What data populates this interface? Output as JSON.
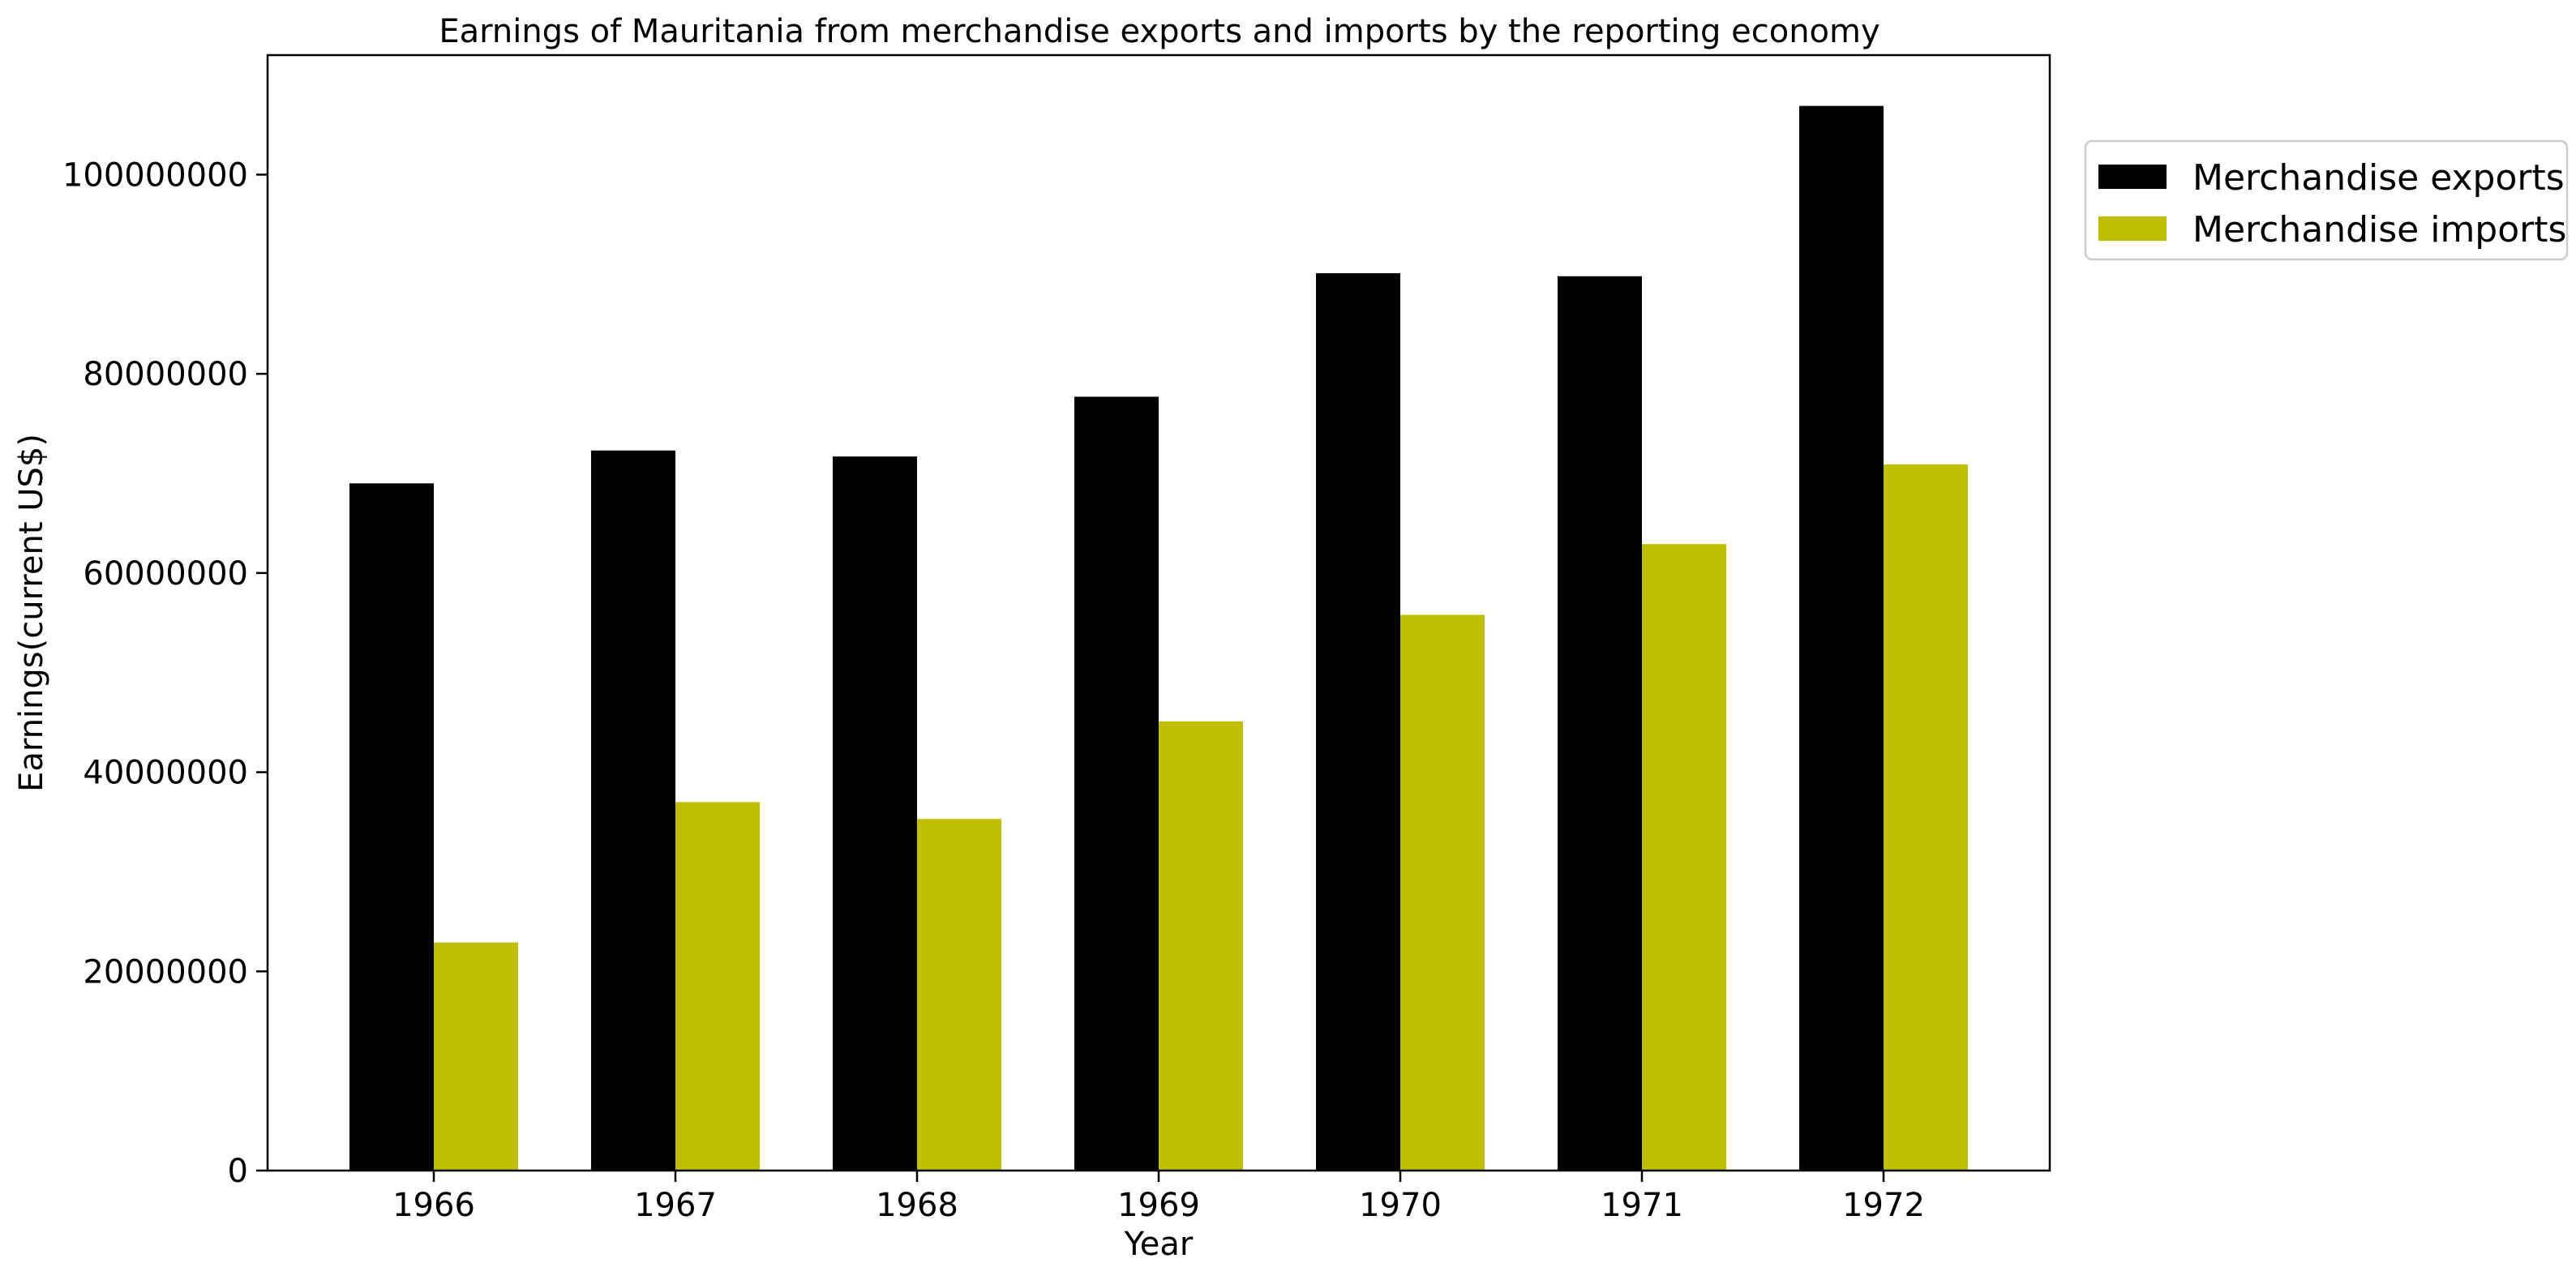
{
  "chart_data": {
    "type": "bar",
    "title": "Earnings of Mauritania from merchandise exports and imports by the reporting economy",
    "xlabel": "Year",
    "ylabel": "Earnings(current US$)",
    "categories": [
      "1966",
      "1967",
      "1968",
      "1969",
      "1970",
      "1971",
      "1972"
    ],
    "series": [
      {
        "name": "Merchandise exports",
        "color": "#000000",
        "values": [
          69000000,
          72300000,
          71700000,
          77700000,
          90100000,
          89800000,
          106900000
        ]
      },
      {
        "name": "Merchandise imports",
        "color": "#bfbf00",
        "values": [
          22900000,
          37000000,
          35300000,
          45100000,
          55800000,
          62900000,
          70900000
        ]
      }
    ],
    "ylim": [
      0,
      112000000
    ],
    "yticks": [
      0,
      20000000,
      40000000,
      60000000,
      80000000,
      100000000
    ],
    "ytick_labels": [
      "0",
      "20000000",
      "40000000",
      "60000000",
      "80000000",
      "100000000"
    ],
    "grid": false,
    "legend_position": "upper right, outside plot area"
  }
}
